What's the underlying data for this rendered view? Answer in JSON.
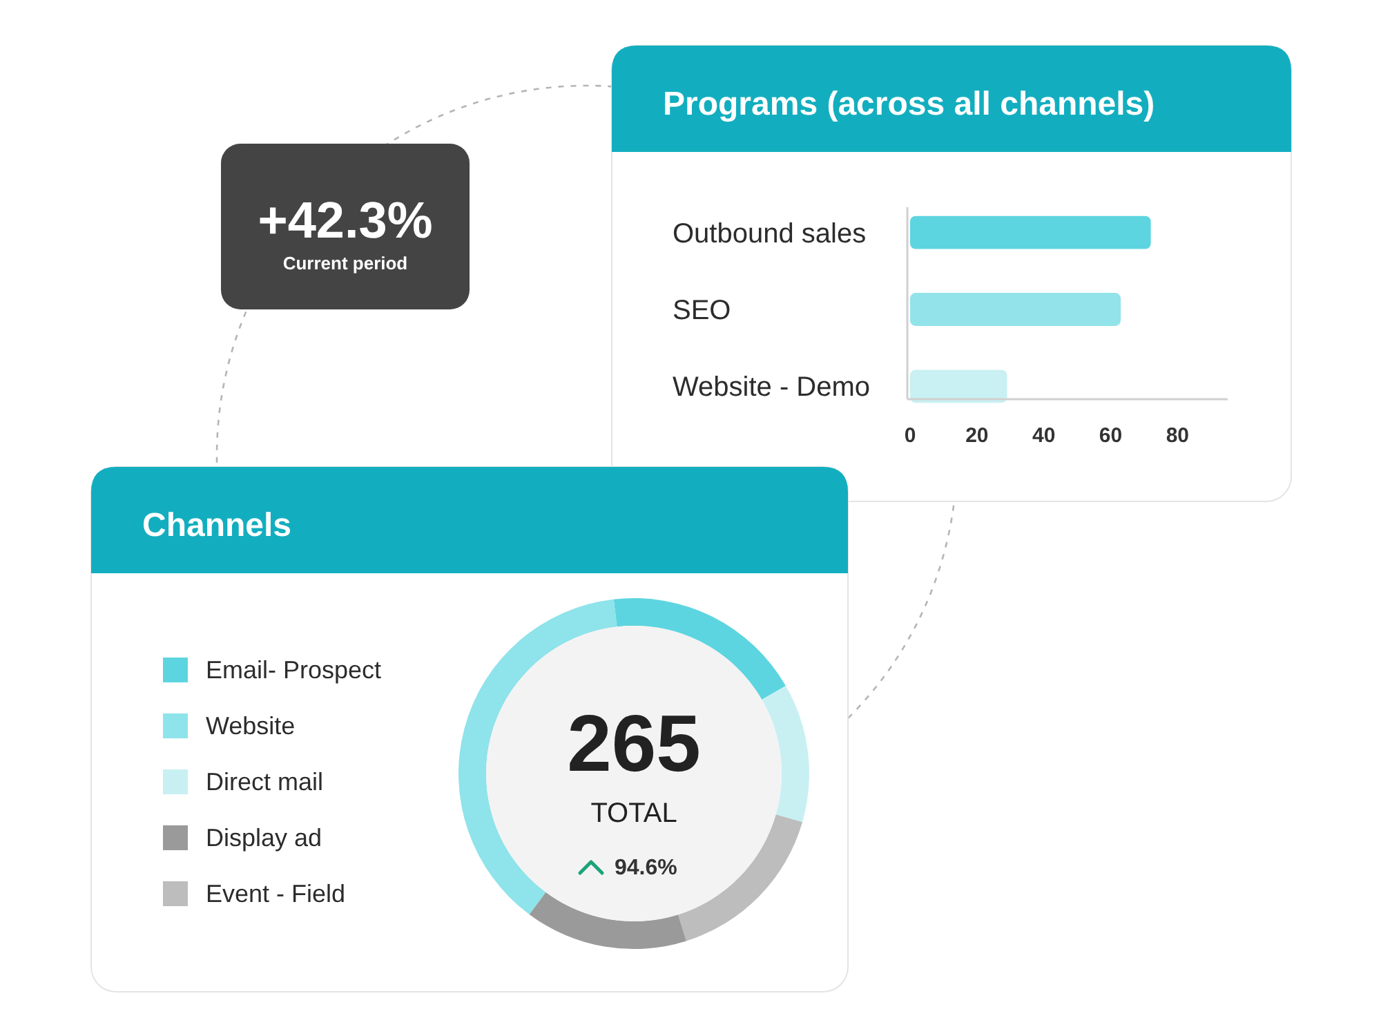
{
  "chart_data": [
    {
      "type": "other",
      "title": "+42.3%",
      "subtitle": "Current period"
    },
    {
      "type": "bar",
      "title": "Programs (across all channels)",
      "orientation": "horizontal",
      "categories": [
        "Outbound sales",
        "SEO",
        "Website - Demo"
      ],
      "values": [
        72,
        63,
        29
      ],
      "colors": [
        "#5dd5e0",
        "#93e3ea",
        "#c9f0f3"
      ],
      "xlim": [
        0,
        95
      ],
      "xticks": [
        0,
        20,
        40,
        60,
        80
      ]
    },
    {
      "type": "donut",
      "title": "Channels",
      "categories": [
        "Email- Prospect",
        "Direct mail",
        "Event - Field",
        "Display ad",
        "Website"
      ],
      "values": [
        18.5,
        12.8,
        15.7,
        15,
        38
      ],
      "colors": [
        "#5dd5e0",
        "#c8f0f3",
        "#bdbdbd",
        "#9a9a9a",
        "#8fe3ea"
      ],
      "legend": "left",
      "annotations": [
        "265",
        "TOTAL",
        "94.6%"
      ]
    }
  ]
}
